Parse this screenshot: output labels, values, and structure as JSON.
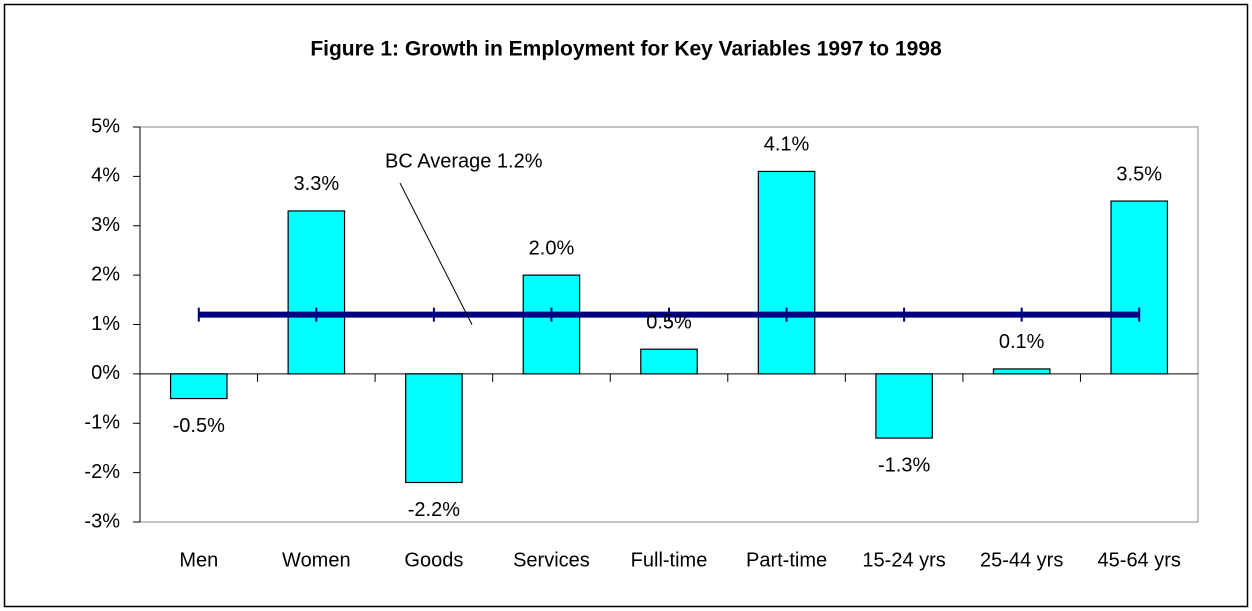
{
  "chart_data": {
    "type": "bar",
    "title": "Figure 1: Growth in Employment  for Key Variables 1997 to 1998",
    "categories": [
      "Men",
      "Women",
      "Goods",
      "Services",
      "Full-time",
      "Part-time",
      "15-24 yrs",
      "25-44 yrs",
      "45-64 yrs"
    ],
    "values": [
      -0.5,
      3.3,
      -2.2,
      2.0,
      0.5,
      4.1,
      -1.3,
      0.1,
      3.5
    ],
    "value_labels": [
      "-0.5%",
      "3.3%",
      "-2.2%",
      "2.0%",
      "0.5%",
      "4.1%",
      "-1.3%",
      "0.1%",
      "3.5%"
    ],
    "color": "#00ffff",
    "average": {
      "value": 1.2,
      "label": "BC Average 1.2%",
      "color": "#000080"
    },
    "ylim": [
      -3,
      5
    ],
    "yticks": [
      {
        "value": -3,
        "label": "-3%"
      },
      {
        "value": -2,
        "label": "-2%"
      },
      {
        "value": -1,
        "label": "-1%"
      },
      {
        "value": 0,
        "label": "0%"
      },
      {
        "value": 1,
        "label": "1%"
      },
      {
        "value": 2,
        "label": "2%"
      },
      {
        "value": 3,
        "label": "3%"
      },
      {
        "value": 4,
        "label": "4%"
      },
      {
        "value": 5,
        "label": "5%"
      }
    ],
    "grid": false
  }
}
